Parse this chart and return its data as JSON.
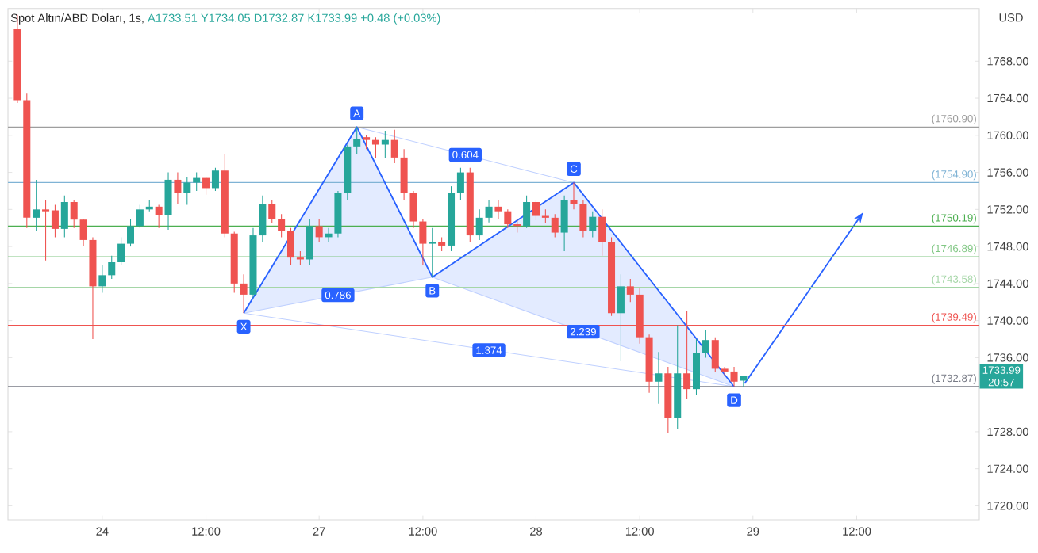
{
  "chart_data": {
    "type": "candlestick",
    "title": "Spot Altın/ABD Doları, 1s,",
    "subtitle": "A1733.51 Y1734.05 D1732.87 K1733.99 +0.48 (+0.03%)",
    "ylabel": "USD",
    "categories": [
      null,
      null,
      null,
      null,
      null,
      null,
      null,
      null,
      null,
      "24",
      null,
      null,
      null,
      null,
      null,
      null,
      null,
      null,
      null,
      null,
      "12:00",
      null,
      null,
      null,
      null,
      null,
      null,
      null,
      null,
      null,
      null,
      null,
      "27",
      null,
      null,
      null,
      null,
      null,
      null,
      null,
      null,
      null,
      null,
      "12:00",
      null,
      null,
      null,
      null,
      null,
      null,
      null,
      null,
      null,
      null,
      null,
      "28",
      null,
      null,
      null,
      null,
      null,
      null,
      null,
      null,
      null,
      null,
      "12:00",
      null,
      null,
      null,
      null,
      null,
      null,
      null,
      null,
      null,
      null,
      null,
      "29",
      null,
      null,
      null,
      null,
      null,
      null,
      null,
      null,
      null,
      null,
      "12:00",
      null,
      null,
      null,
      null,
      null,
      null,
      null,
      null,
      null,
      null,
      null,
      null
    ],
    "ohlc": [
      [
        1771.5,
        1773,
        1763.5,
        1763.8
      ],
      [
        1763.8,
        1764.5,
        1750,
        1751.1
      ],
      [
        1751.1,
        1755.2,
        1749.7,
        1752
      ],
      [
        1752,
        1753,
        1746.5,
        1751.8
      ],
      [
        1751.9,
        1752.5,
        1749,
        1749.9
      ],
      [
        1749.9,
        1753.5,
        1749,
        1752.8
      ],
      [
        1752.8,
        1753,
        1750,
        1750.9
      ],
      [
        1750.9,
        1751,
        1748,
        1748.7
      ],
      [
        1748.7,
        1749,
        1738,
        1743.7
      ],
      [
        1743.7,
        1746,
        1743,
        1744.9
      ],
      [
        1744.9,
        1747,
        1744.5,
        1746.3
      ],
      [
        1746.3,
        1749,
        1746,
        1748.3
      ],
      [
        1748.3,
        1751,
        1748,
        1750.2
      ],
      [
        1750.2,
        1752.5,
        1750,
        1752
      ],
      [
        1752,
        1753,
        1751.8,
        1752.3
      ],
      [
        1752.3,
        1752.5,
        1750,
        1751.4
      ],
      [
        1751.4,
        1756,
        1749.8,
        1755.2
      ],
      [
        1755.2,
        1756,
        1752.6,
        1753.8
      ],
      [
        1753.8,
        1755.5,
        1752.5,
        1754.9
      ],
      [
        1754.9,
        1756,
        1754,
        1755.4
      ],
      [
        1755.4,
        1755.5,
        1753.6,
        1754.3
      ],
      [
        1754.3,
        1756.5,
        1754,
        1756.2
      ],
      [
        1756.2,
        1758,
        1749,
        1749.4
      ],
      [
        1749.4,
        1749.6,
        1743,
        1744
      ],
      [
        1744,
        1745,
        1740.8,
        1742.8
      ],
      [
        1742.8,
        1750,
        1742.5,
        1749.2
      ],
      [
        1749.2,
        1753.5,
        1748.5,
        1752.6
      ],
      [
        1752.6,
        1753,
        1750.5,
        1751
      ],
      [
        1751,
        1751.5,
        1749,
        1749.7
      ],
      [
        1749.7,
        1750,
        1746,
        1746.8
      ],
      [
        1746.8,
        1747.5,
        1746,
        1746.6
      ],
      [
        1746.6,
        1751,
        1746,
        1750.2
      ],
      [
        1750.2,
        1751,
        1748.5,
        1749
      ],
      [
        1749,
        1750,
        1748.5,
        1749.4
      ],
      [
        1749.4,
        1754,
        1749,
        1753.8
      ],
      [
        1753.8,
        1759,
        1753,
        1758.8
      ],
      [
        1758.8,
        1760.9,
        1758,
        1759.6
      ],
      [
        1759.8,
        1760,
        1758.5,
        1759.5
      ],
      [
        1759.5,
        1759.8,
        1757.5,
        1759
      ],
      [
        1759,
        1760.5,
        1757.5,
        1759.5
      ],
      [
        1759.5,
        1760.6,
        1757,
        1757.6
      ],
      [
        1757.6,
        1758.5,
        1753,
        1753.8
      ],
      [
        1753.8,
        1754,
        1750,
        1750.7
      ],
      [
        1750.7,
        1751,
        1746,
        1748.3
      ],
      [
        1748.3,
        1750,
        1744.7,
        1748.5
      ],
      [
        1748.5,
        1749,
        1747.5,
        1748.1
      ],
      [
        1748.1,
        1754.5,
        1747.5,
        1753.8
      ],
      [
        1753.8,
        1756.5,
        1753,
        1756
      ],
      [
        1756,
        1756.5,
        1748.5,
        1749.2
      ],
      [
        1749.2,
        1752,
        1748.7,
        1751.1
      ],
      [
        1751.1,
        1753,
        1750.6,
        1752.3
      ],
      [
        1752.3,
        1753,
        1751,
        1751.8
      ],
      [
        1751.8,
        1752,
        1750,
        1750.4
      ],
      [
        1750.4,
        1751,
        1749.5,
        1750.2
      ],
      [
        1750.2,
        1753.5,
        1750,
        1752.8
      ],
      [
        1752.8,
        1753,
        1750.8,
        1751.3
      ],
      [
        1751.3,
        1752,
        1750.5,
        1751.1
      ],
      [
        1751.1,
        1751.5,
        1749,
        1749.5
      ],
      [
        1749.5,
        1753.5,
        1747.5,
        1753
      ],
      [
        1753,
        1754.9,
        1752,
        1752.6
      ],
      [
        1752.6,
        1753,
        1749,
        1749.7
      ],
      [
        1749.7,
        1751.8,
        1749,
        1751.2
      ],
      [
        1751.2,
        1752,
        1747,
        1748.5
      ],
      [
        1748.5,
        1749,
        1740.5,
        1740.8
      ],
      [
        1740.8,
        1745,
        1735.6,
        1743.7
      ],
      [
        1743.7,
        1744.5,
        1742,
        1742.8
      ],
      [
        1742.8,
        1743.5,
        1737.5,
        1738.2
      ],
      [
        1738.2,
        1738.5,
        1732.2,
        1733.4
      ],
      [
        1733.4,
        1736.6,
        1731,
        1734.3
      ],
      [
        1734.3,
        1735,
        1727.9,
        1729.5
      ],
      [
        1729.5,
        1739.5,
        1728.3,
        1734.3
      ],
      [
        1734.3,
        1741,
        1731.5,
        1732.6
      ],
      [
        1732.6,
        1738,
        1732,
        1736.5
      ],
      [
        1736.5,
        1739,
        1736,
        1737.9
      ],
      [
        1737.9,
        1738.2,
        1734.5,
        1734.8
      ],
      [
        1734.8,
        1735,
        1734,
        1734.5
      ],
      [
        1734.5,
        1735,
        1732.9,
        1733.4
      ],
      [
        1733.51,
        1734.05,
        1732.87,
        1733.99
      ],
      null,
      null,
      null,
      null,
      null,
      null,
      null,
      null,
      null,
      null,
      null,
      null,
      null,
      null,
      null,
      null,
      null,
      null,
      null,
      null,
      null,
      null,
      null,
      null
    ],
    "series": [
      {
        "type": "line",
        "color": "#2962ff",
        "values": [
          null,
          null,
          null,
          null,
          null,
          null,
          null,
          null,
          null,
          null,
          null,
          null,
          null,
          null,
          null,
          null,
          null,
          null,
          null,
          null,
          null,
          null,
          null,
          null,
          1740.8,
          null,
          null,
          null,
          null,
          null,
          null,
          null,
          null,
          null,
          null,
          null,
          1760.9,
          null,
          null,
          null,
          null,
          null,
          null,
          null,
          1744.7,
          null,
          null,
          null,
          null,
          null,
          null,
          null,
          null,
          null,
          null,
          null,
          null,
          null,
          null,
          1754.9,
          null,
          null,
          null,
          null,
          null,
          null,
          null,
          null,
          null,
          null,
          null,
          null,
          null,
          null,
          null,
          null,
          1732.87,
          null,
          null,
          null,
          null,
          null,
          null,
          null,
          null,
          null,
          null,
          null,
          null,
          null,
          null,
          null,
          null,
          null,
          null,
          null,
          null,
          null,
          null,
          null,
          null,
          null
        ]
      }
    ],
    "ref_lines": [
      {
        "axis": "y",
        "value": 1760.9,
        "label": "(1760.90)",
        "color": "#9e9e9e"
      },
      {
        "axis": "y",
        "value": 1754.9,
        "label": "(1754.90)",
        "color": "#7fb3d5"
      },
      {
        "axis": "y",
        "value": 1750.19,
        "label": "(1750.19)",
        "color": "#4caf50"
      },
      {
        "axis": "y",
        "value": 1746.89,
        "label": "(1746.89)",
        "color": "#81c784"
      },
      {
        "axis": "y",
        "value": 1743.58,
        "label": "(1743.58)",
        "color": "#a5d6a7"
      },
      {
        "axis": "y",
        "value": 1739.49,
        "label": "(1739.49)",
        "color": "#ef5350"
      },
      {
        "axis": "y",
        "value": 1732.87,
        "label": "(1732.87)",
        "color": "#787b86"
      }
    ],
    "annotations": [
      {
        "text": "X",
        "y": 1740.8
      },
      {
        "text": "A",
        "y": 1760.9
      },
      {
        "text": "B",
        "y": 1744.7
      },
      {
        "text": "C",
        "y": 1754.9
      },
      {
        "text": "D",
        "y": 1732.87
      },
      {
        "text": "0.786",
        "y": 1742.75
      },
      {
        "text": "0.604",
        "y": 1757.9
      },
      {
        "text": "2.239",
        "y": 1738.8
      },
      {
        "text": "1.374",
        "y": 1736.8
      },
      "1733.99",
      "20:57"
    ],
    "ylim": [
      1718.5,
      1773.7
    ],
    "yticks": [
      {
        "value": 1720,
        "label": "1720.00"
      },
      {
        "value": 1724,
        "label": "1724.00"
      },
      {
        "value": 1728,
        "label": "1728.00"
      },
      {
        "value": 1736,
        "label": "1736.00"
      },
      {
        "value": 1740,
        "label": "1740.00"
      },
      {
        "value": 1744,
        "label": "1744.00"
      },
      {
        "value": 1748,
        "label": "1748.00"
      },
      {
        "value": 1752,
        "label": "1752.00"
      },
      {
        "value": 1756,
        "label": "1756.00"
      },
      {
        "value": 1760,
        "label": "1760.00"
      },
      {
        "value": 1764,
        "label": "1764.00"
      },
      {
        "value": 1768,
        "label": "1768.00"
      }
    ]
  }
}
